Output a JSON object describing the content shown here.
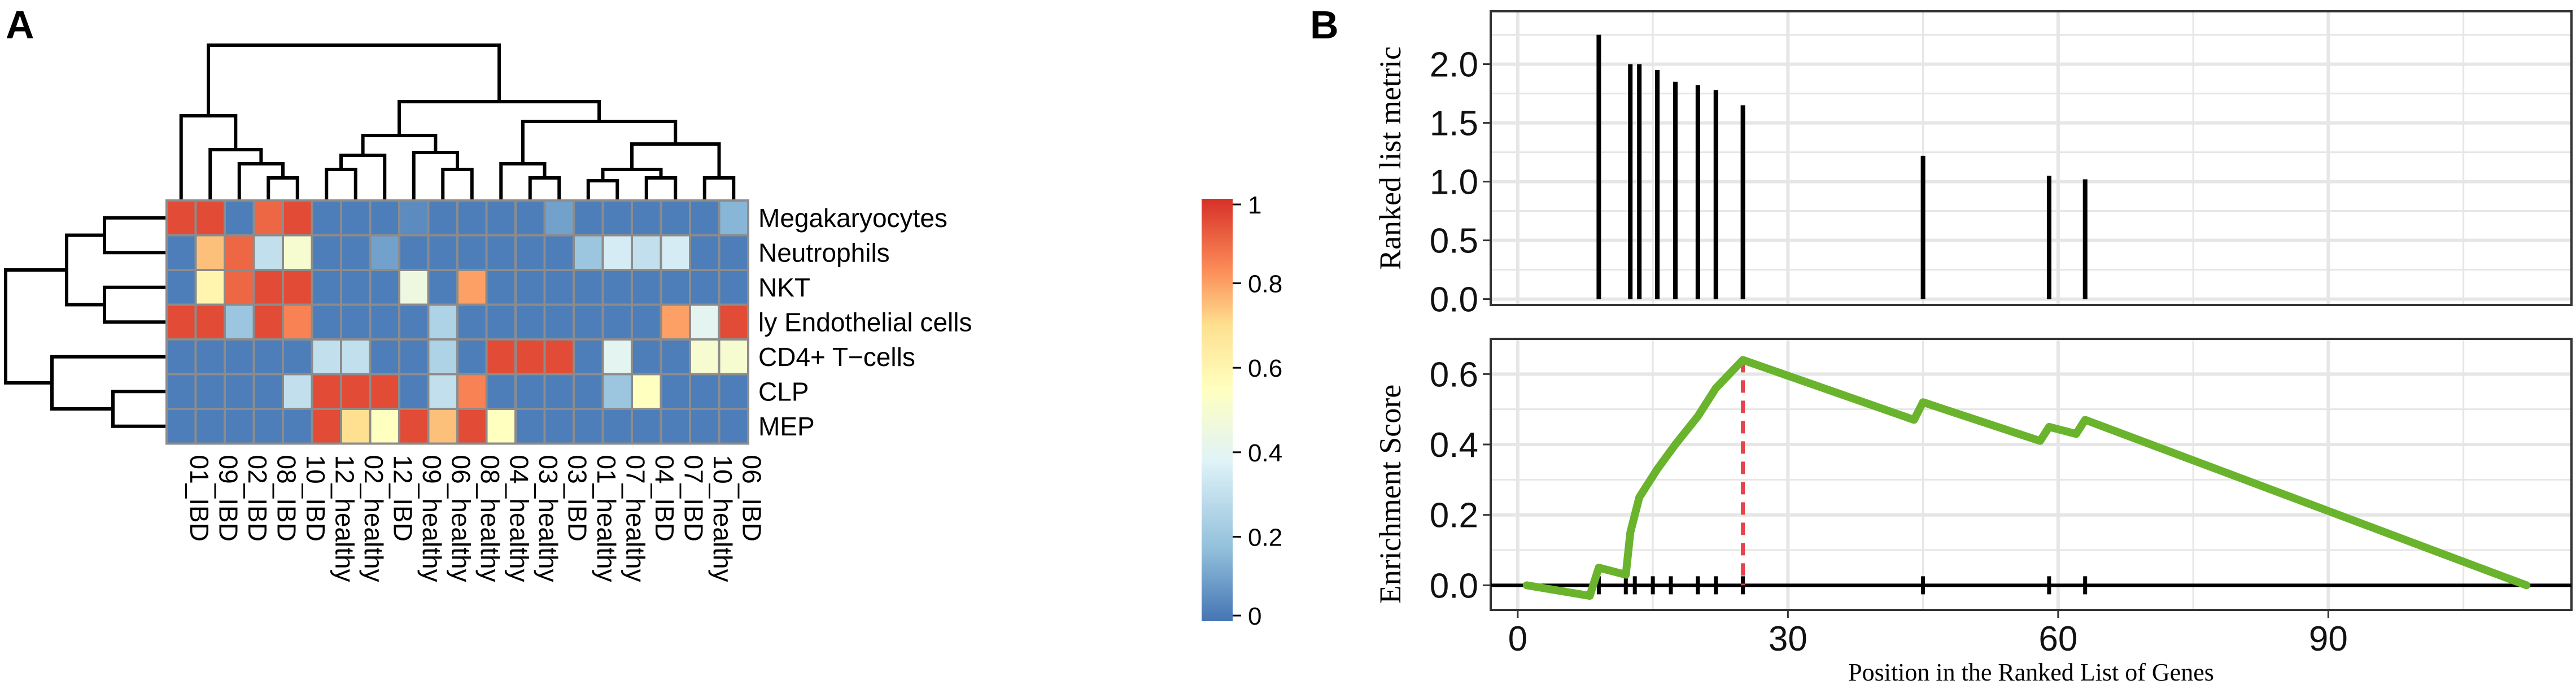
{
  "chart_data": [
    {
      "type": "heatmap",
      "panel_label": "A",
      "rows": [
        "Megakaryocytes",
        "Neutrophils",
        "NKT",
        "ly Endothelial cells",
        "CD4+ T−cells",
        "CLP",
        "MEP"
      ],
      "columns": [
        "01_IBD",
        "09_IBD",
        "02_IBD",
        "08_IBD",
        "10_IBD",
        "12_healthy",
        "02_healthy",
        "12_IBD",
        "09_healthy",
        "06_healthy",
        "08_healthy",
        "04_healthy",
        "03_healthy",
        "03_IBD",
        "01_healthy",
        "07_healthy",
        "04_IBD",
        "07_IBD",
        "10_healthy",
        "06_IBD"
      ],
      "values": [
        [
          0.95,
          0.95,
          0.02,
          0.9,
          0.95,
          0.02,
          0.02,
          0.02,
          0.05,
          0.02,
          0.02,
          0.02,
          0.02,
          0.1,
          0.02,
          0.02,
          0.02,
          0.02,
          0.02,
          0.15
        ],
        [
          0.02,
          0.75,
          0.9,
          0.3,
          0.5,
          0.02,
          0.02,
          0.1,
          0.02,
          0.02,
          0.02,
          0.02,
          0.02,
          0.02,
          0.2,
          0.35,
          0.3,
          0.35,
          0.02,
          0.02
        ],
        [
          0.02,
          0.6,
          0.9,
          0.95,
          0.95,
          0.02,
          0.02,
          0.02,
          0.45,
          0.02,
          0.8,
          0.02,
          0.02,
          0.02,
          0.02,
          0.02,
          0.02,
          0.02,
          0.02,
          0.02
        ],
        [
          0.95,
          0.95,
          0.2,
          0.95,
          0.85,
          0.02,
          0.02,
          0.02,
          0.02,
          0.25,
          0.02,
          0.02,
          0.02,
          0.02,
          0.02,
          0.02,
          0.02,
          0.8,
          0.4,
          0.95
        ],
        [
          0.02,
          0.02,
          0.02,
          0.02,
          0.02,
          0.3,
          0.3,
          0.02,
          0.02,
          0.25,
          0.02,
          0.95,
          0.95,
          0.95,
          0.02,
          0.4,
          0.02,
          0.02,
          0.5,
          0.5
        ],
        [
          0.02,
          0.02,
          0.02,
          0.02,
          0.3,
          0.95,
          0.95,
          0.95,
          0.02,
          0.3,
          0.85,
          0.02,
          0.02,
          0.02,
          0.02,
          0.2,
          0.55,
          0.02,
          0.02,
          0.02
        ],
        [
          0.02,
          0.02,
          0.02,
          0.02,
          0.02,
          0.95,
          0.7,
          0.55,
          0.95,
          0.75,
          0.95,
          0.55,
          0.02,
          0.02,
          0.02,
          0.02,
          0.02,
          0.02,
          0.02,
          0.02
        ]
      ],
      "legend": {
        "ticks": [
          0,
          0.2,
          0.4,
          0.6,
          0.8,
          1
        ],
        "tick_labels": [
          "0",
          "0.2",
          "0.4",
          "0.6",
          "0.8",
          "1"
        ],
        "colors": [
          "#4575b4",
          "#91bfdb",
          "#e0f3f8",
          "#ffffbf",
          "#fee090",
          "#fc8d59",
          "#d73027"
        ]
      },
      "column_dendrogram": true,
      "row_dendrogram": true
    },
    {
      "type": "bar",
      "panel_label": "B",
      "subtype": "ranked-list-metric",
      "ylabel": "Ranked list metric",
      "x": [
        9,
        12.5,
        13.5,
        15.5,
        17.5,
        20,
        22,
        25,
        45,
        59,
        63
      ],
      "values": [
        2.25,
        2.0,
        2.0,
        1.95,
        1.85,
        1.82,
        1.78,
        1.65,
        1.22,
        1.05,
        1.02
      ],
      "xlim": [
        -3,
        117
      ],
      "ylim": [
        -0.05,
        2.45
      ],
      "y_ticks": [
        0.0,
        0.5,
        1.0,
        1.5,
        2.0
      ],
      "y_tick_labels": [
        "0.0",
        "0.5",
        "1.0",
        "1.5",
        "2.0"
      ]
    },
    {
      "type": "line",
      "panel_label": "B",
      "subtype": "enrichment-score",
      "ylabel": "Enrichment Score",
      "xlabel": "Position in the Ranked List of Genes",
      "x": [
        1,
        8,
        9,
        12,
        12.5,
        13.5,
        15.5,
        17.5,
        20,
        22,
        25,
        44,
        45,
        58,
        59,
        62,
        63,
        112
      ],
      "y": [
        0.0,
        -0.03,
        0.05,
        0.03,
        0.15,
        0.25,
        0.33,
        0.4,
        0.48,
        0.56,
        0.64,
        0.47,
        0.52,
        0.41,
        0.45,
        0.43,
        0.47,
        0.0
      ],
      "line_color": "#6ab42d",
      "hits": [
        9,
        12,
        13,
        15,
        17,
        20,
        22,
        25,
        45,
        59,
        63
      ],
      "peak_x": 25,
      "peak_line_color": "#e8424a",
      "xlim": [
        -3,
        117
      ],
      "ylim": [
        -0.07,
        0.7
      ],
      "x_ticks": [
        0,
        30,
        60,
        90
      ],
      "x_tick_labels": [
        "0",
        "30",
        "60",
        "90"
      ],
      "y_ticks": [
        0.0,
        0.2,
        0.4,
        0.6
      ],
      "y_tick_labels": [
        "0.0",
        "0.2",
        "0.4",
        "0.6"
      ]
    }
  ]
}
